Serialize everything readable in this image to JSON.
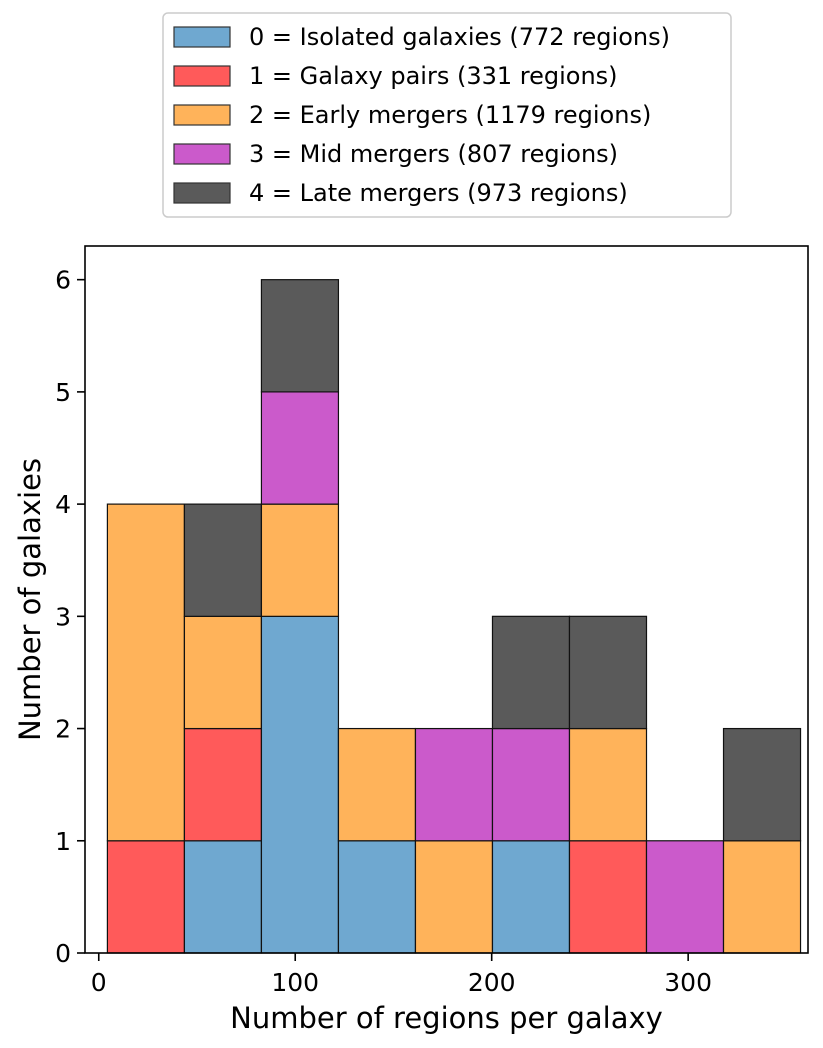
{
  "chart_data": {
    "type": "bar",
    "stacked": true,
    "xlabel": "Number of regions per galaxy",
    "ylabel": "Number of galaxies",
    "xlim": [
      -7,
      361
    ],
    "ylim": [
      0,
      6.3
    ],
    "xticks": [
      0,
      100,
      200,
      300
    ],
    "yticks": [
      0,
      1,
      2,
      3,
      4,
      5,
      6
    ],
    "grid": false,
    "legend_position": "top-center, outside plot",
    "bin_edges": [
      4.4,
      43.6,
      82.8,
      122.0,
      161.2,
      200.4,
      239.6,
      278.8,
      318.0,
      357.2
    ],
    "series": [
      {
        "name": "0 = Isolated galaxies (772 regions)",
        "color": "#6fa8d0",
        "values": [
          0,
          1,
          3,
          1,
          0,
          1,
          0,
          0,
          0
        ]
      },
      {
        "name": "1 = Galaxy pairs (331 regions)",
        "color": "#ff5a5a",
        "values": [
          1,
          1,
          0,
          0,
          0,
          0,
          1,
          0,
          0
        ]
      },
      {
        "name": "2 = Early mergers (1179 regions)",
        "color": "#ffb35a",
        "values": [
          3,
          1,
          1,
          1,
          1,
          0,
          1,
          0,
          1
        ]
      },
      {
        "name": "3 = Mid mergers (807 regions)",
        "color": "#cb5acb",
        "values": [
          0,
          0,
          1,
          0,
          1,
          1,
          0,
          1,
          0
        ]
      },
      {
        "name": "4 = Late mergers (973 regions)",
        "color": "#5a5a5a",
        "values": [
          0,
          1,
          1,
          0,
          0,
          1,
          1,
          0,
          1
        ]
      }
    ]
  }
}
